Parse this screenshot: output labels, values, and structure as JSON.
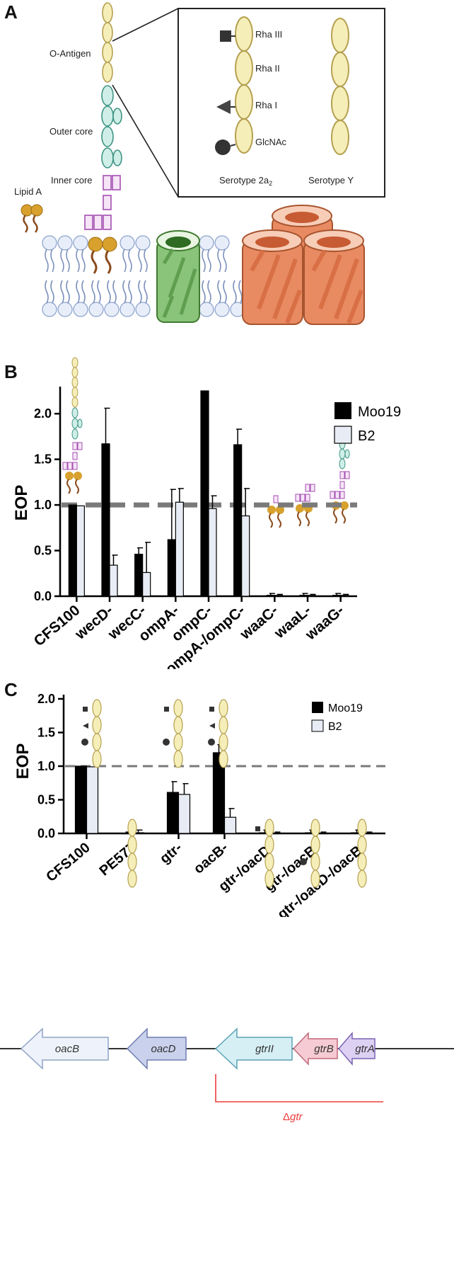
{
  "figure": {
    "panels": [
      "A",
      "B",
      "C"
    ]
  },
  "panelA": {
    "lps_labels": {
      "o_antigen": "O-Antigen",
      "outer_core": "Outer core",
      "inner_core": "Inner core",
      "lipid_a": "Lipid A"
    },
    "inset": {
      "sugars": [
        "Rha III",
        "Rha II",
        "Rha I",
        "GlcNAc"
      ],
      "serotype_left_prefix": "Serotype 2a",
      "serotype_left_sub": "2",
      "serotype_right": "Serotype Y"
    }
  },
  "chart_data": [
    {
      "panel": "B",
      "type": "bar",
      "ylabel": "EOP",
      "ylim": [
        0,
        2.25
      ],
      "yticks": [
        "0.0",
        "0.5",
        "1.0",
        "1.5",
        "2.0"
      ],
      "reference_line": 1.0,
      "categories": [
        "CFS100",
        "wecD-",
        "wecC-",
        "ompA-",
        "ompC-",
        "ompA-/ompC-",
        "waaC-",
        "waaL-",
        "waaG-"
      ],
      "series": [
        {
          "name": "Moo19",
          "color": "#000000",
          "values": [
            1.0,
            1.67,
            0.46,
            0.62,
            2.25,
            1.66,
            0.01,
            0.01,
            0.01
          ],
          "errors": [
            0,
            0.39,
            0.07,
            0.55,
            0,
            0.17,
            0.02,
            0.02,
            0.02
          ]
        },
        {
          "name": "B2",
          "color": "#e8ecf4",
          "values": [
            0.99,
            0.34,
            0.26,
            1.03,
            0.96,
            0.88,
            0.01,
            0.01,
            0.01
          ],
          "errors": [
            0,
            0.11,
            0.33,
            0.15,
            0.14,
            0.3,
            0.01,
            0.01,
            0.01
          ]
        }
      ]
    },
    {
      "panel": "C",
      "type": "bar",
      "ylabel": "EOP",
      "ylim": [
        0,
        2.0
      ],
      "yticks": [
        "0.0",
        "0.5",
        "1.0",
        "1.5",
        "2.0"
      ],
      "reference_line": 1.0,
      "categories": [
        "CFS100",
        "PE577",
        "gtr-",
        "oacB-",
        "gtr-/oacD-",
        "gtr-/oacB-",
        "gtr-/oacD-/oacB-"
      ],
      "series": [
        {
          "name": "Moo19",
          "color": "#000000",
          "values": [
            1.0,
            0.0,
            0.61,
            1.2,
            0.01,
            0.01,
            0.01
          ],
          "errors": [
            0,
            0.02,
            0.16,
            0.12,
            0.04,
            0.04,
            0.04
          ]
        },
        {
          "name": "B2",
          "color": "#e8ecf4",
          "values": [
            0.99,
            0.01,
            0.58,
            0.24,
            0.0,
            0.0,
            0.0
          ],
          "errors": [
            0,
            0.04,
            0.16,
            0.13,
            0.02,
            0.02,
            0.02
          ]
        }
      ]
    }
  ],
  "gene_map": {
    "genes": [
      "oacB",
      "oacD",
      "gtrII",
      "gtrB",
      "gtrA"
    ],
    "deletion_label_prefix": "Δ",
    "deletion_label_gene": "gtr"
  }
}
